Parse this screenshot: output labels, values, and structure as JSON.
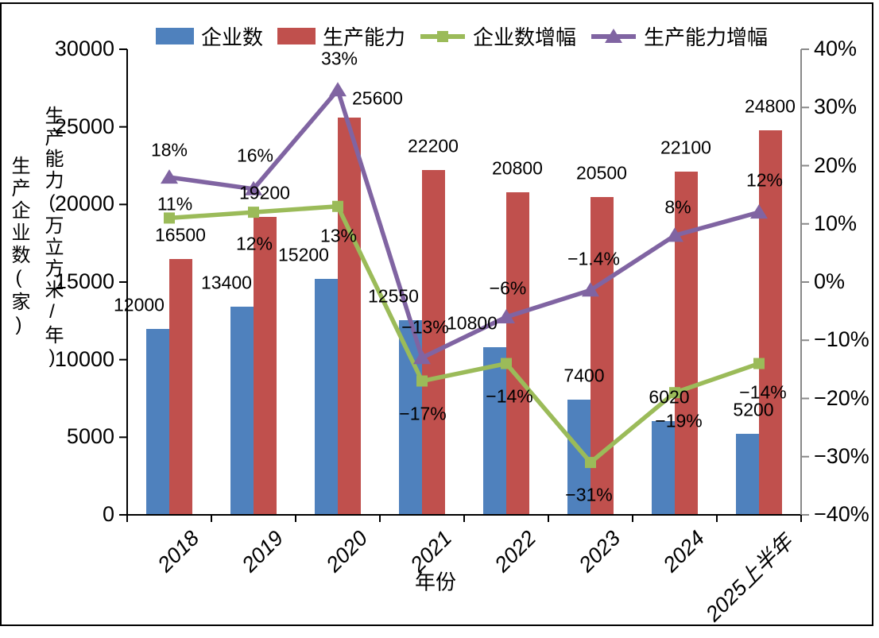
{
  "chart_data": {
    "type": "bar+line-combo",
    "categories": [
      "2018",
      "2019",
      "2020",
      "2021",
      "2022",
      "2023",
      "2024",
      "2025上半年"
    ],
    "x_axis": {
      "title": "年份"
    },
    "left_axis": {
      "min": 0,
      "max": 30000,
      "tick_labels": [
        "0",
        "5000",
        "10000",
        "15000",
        "20000",
        "25000",
        "30000"
      ],
      "titles": [
        "生产企业数(家)",
        "生产能力(万立方米/年)"
      ]
    },
    "right_axis": {
      "min": -40,
      "max": 40,
      "tick_labels": [
        "40%",
        "30%",
        "20%",
        "10%",
        "0%",
        "−10%",
        "−20%",
        "−30%",
        "−40%"
      ]
    },
    "series": [
      {
        "name": "企业数",
        "type": "bar",
        "axis": "left",
        "color": "#4F81BD",
        "values": [
          12000,
          13400,
          15200,
          12550,
          10800,
          7400,
          6020,
          5200
        ],
        "data_labels": [
          "12000",
          "13400",
          "15200",
          "12550",
          "10800",
          "7400",
          "6020",
          "5200"
        ]
      },
      {
        "name": "生产能力",
        "type": "bar",
        "axis": "left",
        "color": "#C0504D",
        "values": [
          16500,
          19200,
          25600,
          22200,
          20800,
          20500,
          22100,
          24800
        ],
        "data_labels": [
          "16500",
          "19200",
          "25600",
          "22200",
          "20800",
          "20500",
          "22100",
          "24800"
        ]
      },
      {
        "name": "企业数增幅",
        "type": "line",
        "marker": "square",
        "axis": "right",
        "color": "#9BBB59",
        "values_pct": [
          11,
          12,
          13,
          -17,
          -14,
          -31,
          -19,
          -14
        ],
        "data_labels": [
          "11%",
          "12%",
          "13%",
          "−17%",
          "−14%",
          "−31%",
          "−19%",
          "−14%"
        ]
      },
      {
        "name": "生产能力增幅",
        "type": "line",
        "marker": "triangle",
        "axis": "right",
        "color": "#8064A2",
        "values_pct": [
          18,
          16,
          33,
          -13,
          -6,
          -1.4,
          8,
          12
        ],
        "data_labels": [
          "18%",
          "16%",
          "33%",
          "−13%",
          "−6%",
          "−1.4%",
          "8%",
          "12%"
        ]
      }
    ],
    "colors": {
      "axis_black": "#000000",
      "axis_gray": "#898989"
    }
  }
}
